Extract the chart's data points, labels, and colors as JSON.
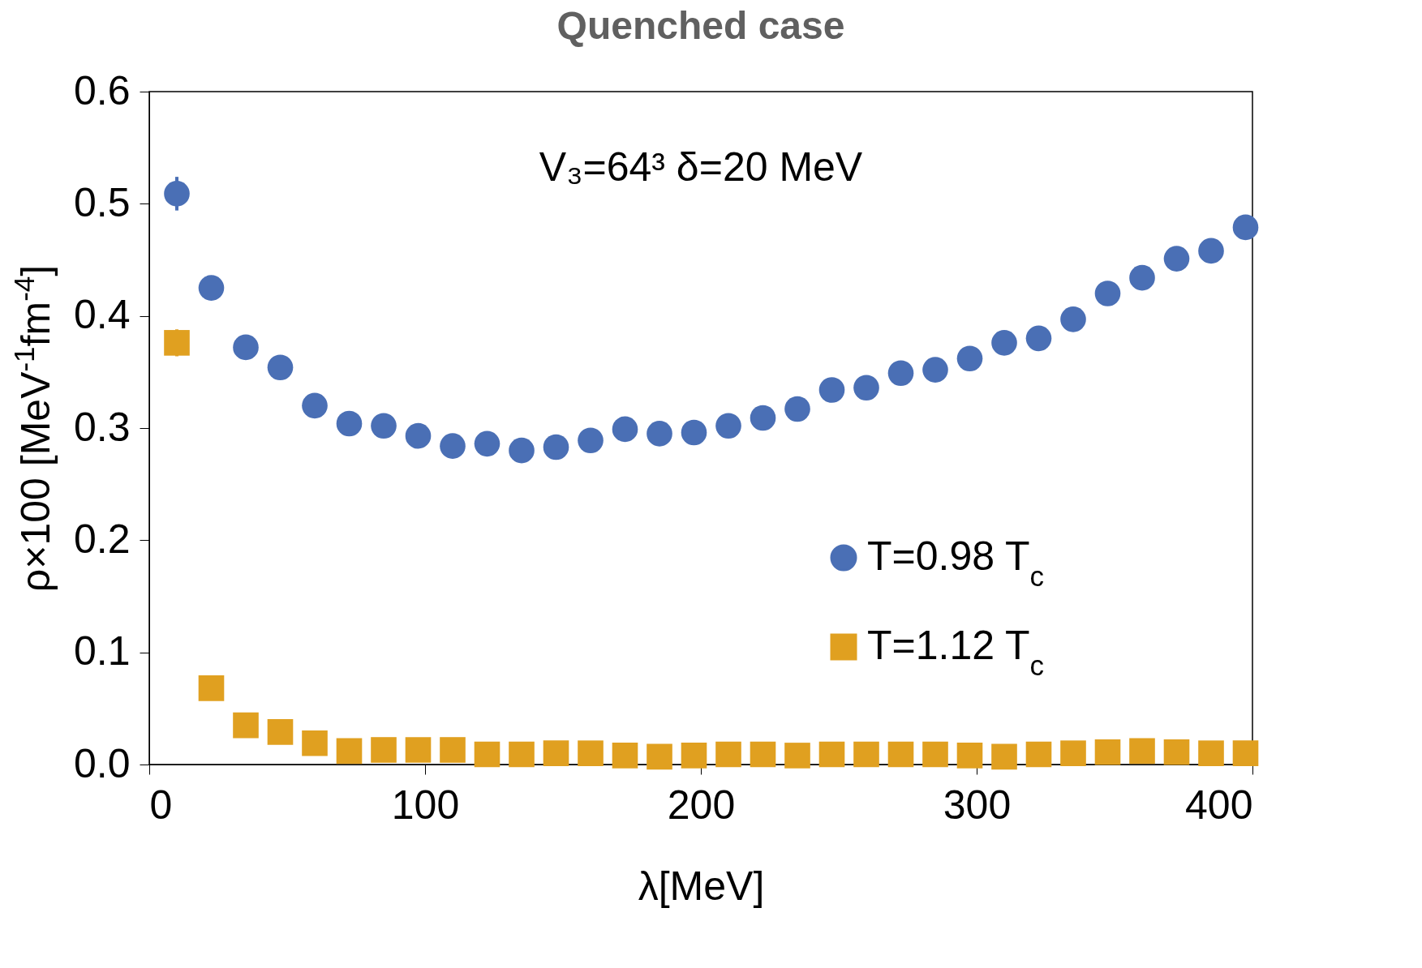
{
  "chart_data": {
    "type": "scatter",
    "title": "Quenched case",
    "xlabel": "λ[MeV]",
    "ylabel": "ρ×100 [MeV$^{-1}$fm$^{-4}$]",
    "annotations": [
      "V₃=64³  δ=20 MeV"
    ],
    "x": [
      10,
      22.5,
      35,
      47.5,
      60,
      72.5,
      85,
      97.5,
      110,
      122.5,
      135,
      147.5,
      160,
      172.5,
      185,
      197.5,
      210,
      222.5,
      235,
      247.5,
      260,
      272.5,
      285,
      297.5,
      310,
      322.5,
      335,
      347.5,
      360,
      372.5,
      385,
      397.5
    ],
    "series": [
      {
        "name": "T=0.98 T$_{c}$",
        "color": "#4a6fb5",
        "marker": "circle",
        "values": [
          0.509,
          0.425,
          0.372,
          0.354,
          0.32,
          0.304,
          0.302,
          0.293,
          0.284,
          0.286,
          0.28,
          0.283,
          0.289,
          0.299,
          0.295,
          0.296,
          0.302,
          0.309,
          0.317,
          0.334,
          0.336,
          0.349,
          0.352,
          0.362,
          0.376,
          0.38,
          0.397,
          0.42,
          0.434,
          0.451,
          0.458,
          0.479
        ],
        "errors": [
          0.015,
          null,
          null,
          null,
          null,
          null,
          null,
          null,
          null,
          null,
          null,
          null,
          null,
          null,
          null,
          null,
          null,
          null,
          null,
          null,
          null,
          null,
          null,
          null,
          null,
          null,
          null,
          null,
          null,
          null,
          null,
          null
        ]
      },
      {
        "name": "T=1.12 T$_{c}$",
        "color": "#e0a020",
        "marker": "square",
        "values": [
          0.376,
          0.068,
          0.035,
          0.029,
          0.019,
          0.012,
          0.013,
          0.013,
          0.013,
          0.009,
          0.009,
          0.01,
          0.01,
          0.008,
          0.007,
          0.008,
          0.009,
          0.009,
          0.008,
          0.009,
          0.009,
          0.009,
          0.009,
          0.008,
          0.007,
          0.009,
          0.01,
          0.011,
          0.012,
          0.011,
          0.01,
          0.01
        ],
        "errors": [
          0.012,
          null,
          null,
          null,
          null,
          null,
          null,
          null,
          null,
          null,
          null,
          null,
          null,
          null,
          null,
          null,
          null,
          null,
          null,
          null,
          null,
          null,
          null,
          null,
          null,
          null,
          null,
          null,
          null,
          null,
          null,
          null
        ]
      }
    ],
    "xlim": [
      0,
      400
    ],
    "xticks": [
      0,
      100,
      200,
      300,
      400
    ],
    "ylim": [
      0,
      0.6
    ],
    "yticks": [
      {
        "value": 0,
        "label": "0.0"
      },
      {
        "value": 0.1,
        "label": "0.1"
      },
      {
        "value": 0.2,
        "label": "0.2"
      },
      {
        "value": 0.3,
        "label": "0.3"
      },
      {
        "value": 0.4,
        "label": "0.4"
      },
      {
        "value": 0.5,
        "label": "0.5"
      },
      {
        "value": 0.6,
        "label": "0.6"
      }
    ],
    "grid": false,
    "legend": "bottom right"
  }
}
